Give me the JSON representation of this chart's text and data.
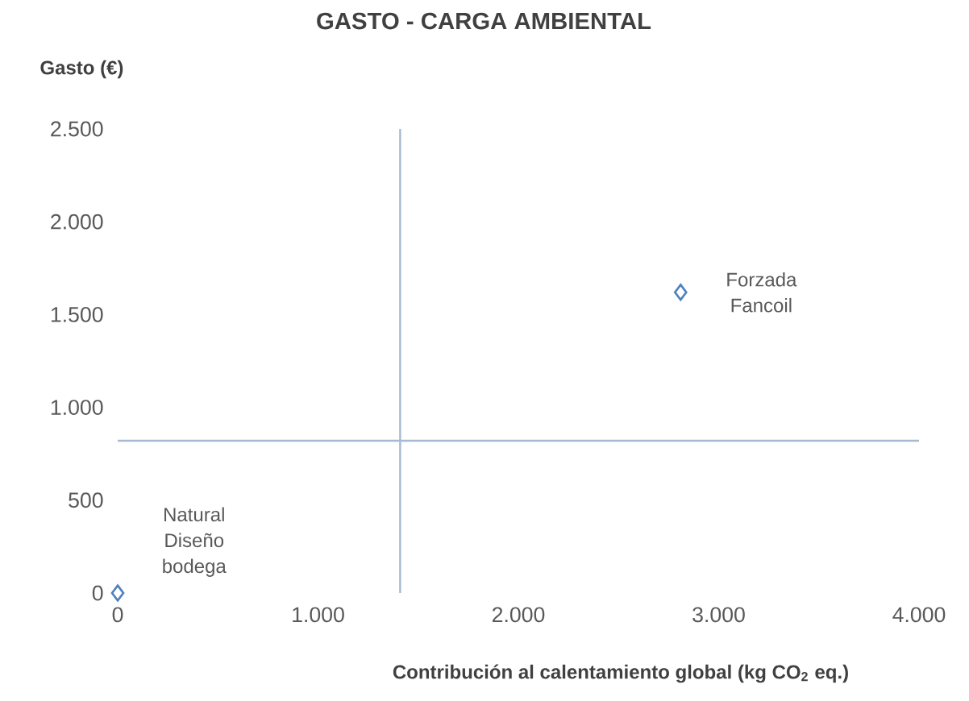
{
  "chart_data": {
    "type": "scatter",
    "title": "GASTO - CARGA AMBIENTAL",
    "xlabel": "Contribución al calentamiento global (kg CO$_{2}$ eq.)",
    "ylabel": "Gasto (€)",
    "x": [
      0,
      2810
    ],
    "values": [
      0,
      1620
    ],
    "color": "#4f81bd",
    "marker": "diamond",
    "xlim": [
      0,
      4000
    ],
    "ylim": [
      0,
      2500
    ],
    "xticks": [
      0,
      {
        "value": 1000,
        "label": "1.000"
      },
      {
        "value": 2000,
        "label": "2.000"
      },
      {
        "value": 3000,
        "label": "3.000"
      },
      {
        "value": 4000,
        "label": "4.000"
      }
    ],
    "yticks": [
      0,
      500,
      {
        "value": 1000,
        "label": "1.000"
      },
      {
        "value": 1500,
        "label": "1.500"
      },
      {
        "value": 2000,
        "label": "2.000"
      },
      {
        "value": 2500,
        "label": "2.500"
      }
    ],
    "ref_lines": [
      {
        "axis": "x",
        "value": 1410,
        "color": "#a7b9d3"
      },
      {
        "axis": "y",
        "value": 820,
        "color": "#a7b9d3"
      }
    ],
    "annotations": [
      {
        "text": "Natural Diseño bodega",
        "x": 0,
        "y": 0
      },
      {
        "text": "Forzada Fancoil",
        "x": 2810,
        "y": 1620
      }
    ],
    "grid": false
  }
}
